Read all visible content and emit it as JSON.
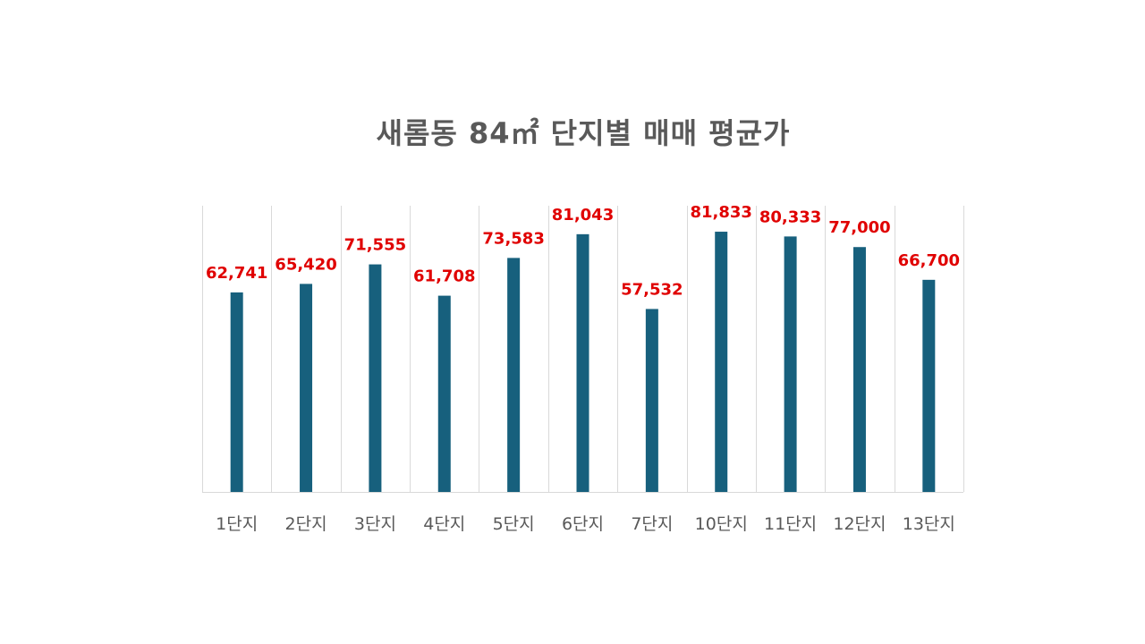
{
  "chart_data": {
    "type": "bar",
    "title": "새롬동 84㎡ 단지별 매매 평균가",
    "categories": [
      "1단지",
      "2단지",
      "3단지",
      "4단지",
      "5단지",
      "6단지",
      "7단지",
      "10단지",
      "11단지",
      "12단지",
      "13단지"
    ],
    "values": [
      62741,
      65420,
      71555,
      61708,
      73583,
      81043,
      57532,
      81833,
      80333,
      77000,
      66700
    ],
    "data_labels": [
      "62,741",
      "65,420",
      "71,555",
      "61,708",
      "73,583",
      "81,043",
      "57,532",
      "81,833",
      "80,333",
      "77,000",
      "66,700"
    ],
    "ylim": [
      0,
      90000
    ],
    "xlabel": "",
    "ylabel": "",
    "grid": "vertical",
    "legend": "none",
    "colors": {
      "bar": "#17607d",
      "data_label": "#e00000",
      "title": "#595959",
      "tick_label": "#595959",
      "grid": "#d9d9d9"
    }
  }
}
